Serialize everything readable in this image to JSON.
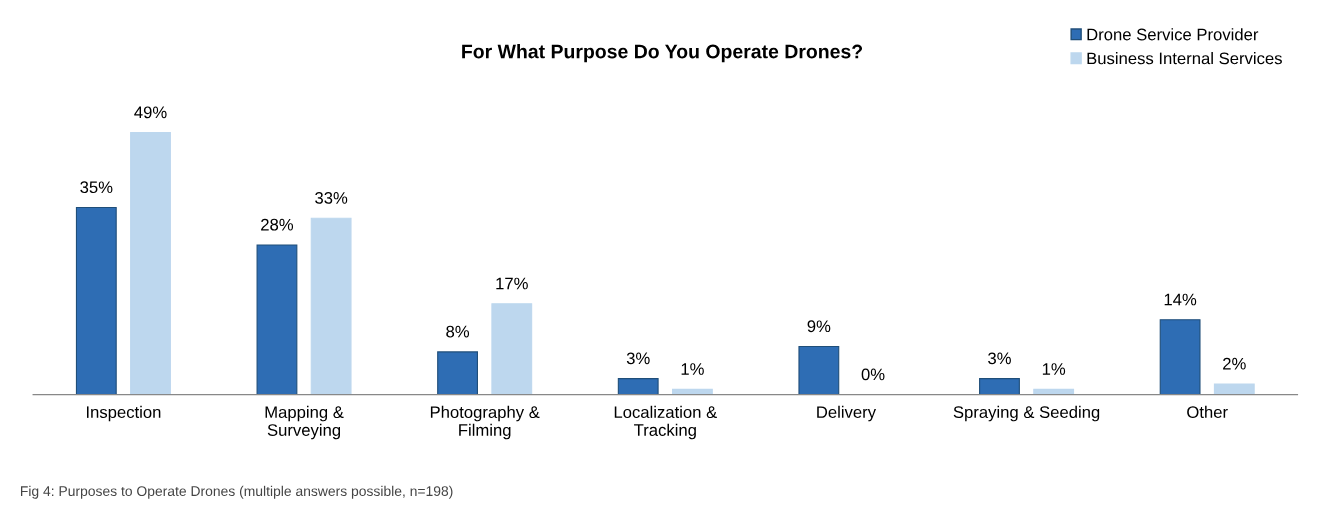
{
  "chart_data": {
    "type": "bar",
    "title": "For What Purpose Do You Operate Drones?",
    "categories": [
      "Inspection",
      "Mapping &\nSurveying",
      "Photography &\nFilming",
      "Localization &\nTracking",
      "Delivery",
      "Spraying & Seeding",
      "Other"
    ],
    "series": [
      {
        "name": "Drone Service Provider",
        "color": "#2e6db4",
        "values": [
          35,
          28,
          8,
          3,
          9,
          3,
          14
        ],
        "value_labels": [
          "35%",
          "28%",
          "8%",
          "3%",
          "9%",
          "3%",
          "14%"
        ]
      },
      {
        "name": "Business Internal Services",
        "color": "#bdd7ee",
        "values": [
          49,
          33,
          17,
          1,
          0,
          1,
          2
        ],
        "value_labels": [
          "49%",
          "33%",
          "17%",
          "1%",
          "0%",
          "1%",
          "2%"
        ]
      }
    ],
    "legend": "top right",
    "grid": false,
    "annotations": [
      "Fig 4: Purposes to Operate Drones (multiple answers possible, n=198)"
    ]
  }
}
